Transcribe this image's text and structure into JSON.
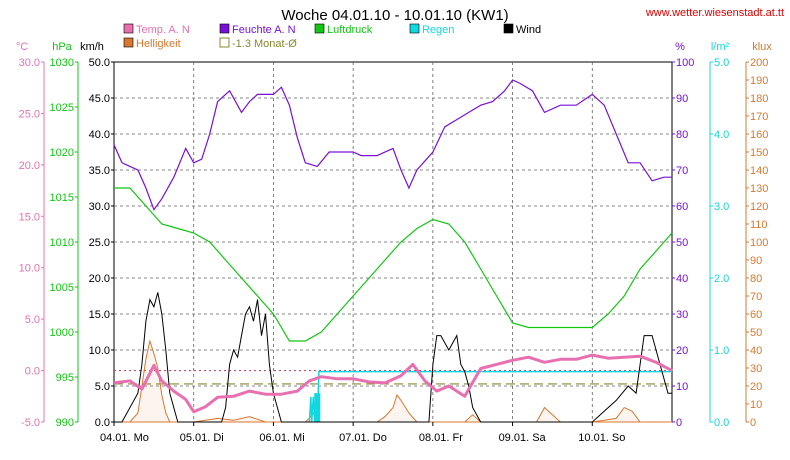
{
  "header": {
    "title": "Woche 04.01.10 - 10.01.10 (KW1)",
    "website": "www.wetter.wiesenstadt.at.tt"
  },
  "colors": {
    "temp": "#e870b0",
    "humidity": "#7a10d8",
    "pressure": "#10c810",
    "rain": "#10d8e0",
    "wind": "#000000",
    "brightness": "#d87830",
    "monthly_avg": "#888830",
    "website": "#e00000",
    "grid": "#606060"
  },
  "legend": [
    {
      "key": "temp",
      "label": "Temp. A. N",
      "color": "#e870b0",
      "style": "box"
    },
    {
      "key": "humidity",
      "label": "Feuchte A. N",
      "color": "#7a10d8",
      "style": "box"
    },
    {
      "key": "pressure",
      "label": "Luftdruck",
      "color": "#10c810",
      "style": "box"
    },
    {
      "key": "rain",
      "label": "Regen",
      "color": "#10d8e0",
      "style": "box"
    },
    {
      "key": "wind",
      "label": "Wind",
      "color": "#000000",
      "style": "box"
    },
    {
      "key": "brightness",
      "label": "Helligkeit",
      "color": "#d87830",
      "style": "box"
    },
    {
      "key": "monthly_avg",
      "label": "-1.3 Monat-Ø",
      "color": "#888830",
      "style": "outline"
    }
  ],
  "chart_data": {
    "type": "line",
    "grid": true,
    "x_range": [
      0,
      7
    ],
    "x_ticks": [
      {
        "x": 0,
        "label": "04.01. Mo"
      },
      {
        "x": 1,
        "label": "05.01. Di"
      },
      {
        "x": 2,
        "label": "06.01. Mi"
      },
      {
        "x": 3,
        "label": "07.01. Do"
      },
      {
        "x": 4,
        "label": "08.01. Fr"
      },
      {
        "x": 5,
        "label": "09.01. Sa"
      },
      {
        "x": 6,
        "label": "10.01. So"
      }
    ],
    "axes": {
      "temp": {
        "unit": "°C",
        "min": -5,
        "max": 30,
        "ticks": [
          "30.0",
          "25.0",
          "20.0",
          "15.0",
          "10.0",
          "5.0",
          "0.0",
          "-5.0"
        ]
      },
      "pressure": {
        "unit": "hPa",
        "min": 990,
        "max": 1030,
        "ticks": [
          "1030",
          "1025",
          "1020",
          "1015",
          "1010",
          "1005",
          "1000",
          "995",
          "990"
        ]
      },
      "wind": {
        "unit": "km/h",
        "min": 0,
        "max": 50,
        "ticks": [
          "50.0",
          "45.0",
          "40.0",
          "35.0",
          "30.0",
          "25.0",
          "20.0",
          "15.0",
          "10.0",
          "5.0",
          "0.0"
        ]
      },
      "humidity": {
        "unit": "%",
        "min": 0,
        "max": 100,
        "ticks": [
          "100",
          "90",
          "80",
          "70",
          "60",
          "50",
          "40",
          "30",
          "20",
          "10",
          "0"
        ]
      },
      "rain": {
        "unit": "l/m²",
        "min": 0,
        "max": 5,
        "ticks": [
          "5.0",
          "4.0",
          "3.0",
          "2.0",
          "1.0",
          "0.0"
        ]
      },
      "brightness": {
        "unit": "klux",
        "min": 0,
        "max": 200,
        "ticks": [
          "200",
          "190",
          "180",
          "170",
          "160",
          "150",
          "140",
          "130",
          "120",
          "110",
          "100",
          "90",
          "80",
          "70",
          "60",
          "50",
          "40",
          "30",
          "20",
          "10",
          "0"
        ]
      }
    },
    "monthly_avg_temp": -1.3,
    "series": [
      {
        "key": "humidity",
        "name": "Feuchte A. N",
        "axis": "humidity",
        "x": [
          0,
          0.1,
          0.2,
          0.3,
          0.4,
          0.5,
          0.6,
          0.75,
          0.9,
          1.0,
          1.1,
          1.2,
          1.3,
          1.45,
          1.6,
          1.7,
          1.8,
          2.0,
          2.1,
          2.2,
          2.3,
          2.4,
          2.55,
          2.7,
          2.85,
          3.0,
          3.1,
          3.3,
          3.5,
          3.6,
          3.7,
          3.8,
          4.0,
          4.15,
          4.3,
          4.45,
          4.6,
          4.75,
          4.9,
          5.0,
          5.1,
          5.25,
          5.4,
          5.6,
          5.8,
          6.0,
          6.15,
          6.3,
          6.45,
          6.6,
          6.75,
          6.9,
          7.0
        ],
        "y": [
          77,
          72,
          71,
          70,
          65,
          59,
          62,
          68,
          76,
          72,
          73,
          80,
          89,
          92,
          86,
          89,
          91,
          91,
          93,
          88,
          79,
          72,
          71,
          75,
          75,
          75,
          74,
          74,
          76,
          70,
          65,
          70,
          75,
          82,
          84,
          86,
          88,
          89,
          92,
          95,
          94,
          92,
          86,
          88,
          88,
          91,
          88,
          80,
          72,
          72,
          67,
          68,
          68
        ]
      },
      {
        "key": "pressure",
        "name": "Luftdruck",
        "axis": "pressure",
        "x": [
          0,
          0.2,
          0.4,
          0.6,
          0.8,
          1.0,
          1.2,
          1.4,
          1.6,
          1.8,
          2.0,
          2.2,
          2.4,
          2.6,
          2.8,
          3.0,
          3.2,
          3.4,
          3.6,
          3.8,
          4.0,
          4.2,
          4.4,
          4.6,
          4.8,
          5.0,
          5.2,
          5.4,
          5.6,
          5.8,
          6.0,
          6.2,
          6.4,
          6.6,
          6.8,
          7.0
        ],
        "y": [
          1016,
          1016,
          1014,
          1012,
          1011.5,
          1011,
          1010,
          1008,
          1006,
          1004,
          1002,
          999,
          999,
          1000,
          1002,
          1004,
          1006,
          1008,
          1010,
          1011.5,
          1012.5,
          1012,
          1010,
          1007,
          1004,
          1001,
          1000.5,
          1000.5,
          1000.5,
          1000.5,
          1000.5,
          1002,
          1004,
          1007,
          1009,
          1011
        ]
      },
      {
        "key": "temp",
        "name": "Temp. A. N",
        "axis": "temp",
        "x": [
          0,
          0.2,
          0.35,
          0.5,
          0.6,
          0.75,
          0.9,
          1.0,
          1.15,
          1.3,
          1.5,
          1.7,
          1.9,
          2.1,
          2.3,
          2.45,
          2.6,
          2.8,
          3.0,
          3.2,
          3.4,
          3.6,
          3.75,
          3.9,
          4.05,
          4.2,
          4.4,
          4.6,
          4.8,
          5.0,
          5.2,
          5.4,
          5.6,
          5.8,
          6.0,
          6.2,
          6.4,
          6.6,
          6.8,
          7.0
        ],
        "y": [
          -1.2,
          -1.0,
          -1.8,
          0.5,
          -1.0,
          -2.0,
          -2.8,
          -4.0,
          -3.5,
          -2.6,
          -2.5,
          -2.0,
          -2.3,
          -2.3,
          -2.0,
          -1.0,
          -0.6,
          -0.8,
          -0.8,
          -1.1,
          -1.2,
          -0.5,
          0.6,
          -1.0,
          -2.0,
          -1.5,
          -2.5,
          0.2,
          0.6,
          1.0,
          1.3,
          0.8,
          1.1,
          1.1,
          1.5,
          1.2,
          1.3,
          1.4,
          0.8,
          0.0
        ]
      },
      {
        "key": "wind",
        "name": "Wind",
        "axis": "wind",
        "x": [
          0,
          0.1,
          0.2,
          0.3,
          0.35,
          0.4,
          0.45,
          0.5,
          0.55,
          0.6,
          0.65,
          0.7,
          0.75,
          0.8,
          0.9,
          1.0,
          1.2,
          1.35,
          1.4,
          1.45,
          1.5,
          1.55,
          1.6,
          1.65,
          1.7,
          1.75,
          1.8,
          1.85,
          1.9,
          1.95,
          2.0,
          2.1,
          2.2,
          2.3,
          2.5,
          3.0,
          3.5,
          3.8,
          3.95,
          4.0,
          4.05,
          4.1,
          4.2,
          4.3,
          4.35,
          4.4,
          4.45,
          4.5,
          4.6,
          5.0,
          5.5,
          6.0,
          6.1,
          6.2,
          6.3,
          6.45,
          6.55,
          6.65,
          6.75,
          6.85,
          6.95,
          7.0
        ],
        "y": [
          0,
          0,
          2,
          4,
          8,
          14,
          17,
          16,
          18,
          15,
          10,
          4,
          2,
          0,
          0,
          0,
          0,
          0,
          2,
          8,
          10,
          9,
          12,
          15,
          16,
          14,
          17,
          12,
          15,
          8,
          4,
          0,
          0,
          0,
          0,
          0,
          0,
          0,
          0,
          8,
          12,
          12,
          10,
          12,
          8,
          7,
          5,
          2,
          0,
          0,
          0,
          0,
          1,
          2,
          3,
          5,
          4,
          12,
          12,
          8,
          4,
          4
        ]
      },
      {
        "key": "brightness",
        "name": "Helligkeit",
        "axis": "brightness",
        "x": [
          0,
          0.2,
          0.3,
          0.35,
          0.4,
          0.45,
          0.5,
          0.55,
          0.6,
          0.65,
          0.7,
          0.8,
          0.9,
          1.0,
          1.3,
          1.5,
          1.7,
          1.9,
          2.0,
          2.2,
          2.4,
          2.45,
          2.5,
          2.55,
          2.6,
          2.8,
          3.0,
          3.3,
          3.4,
          3.5,
          3.55,
          3.6,
          3.7,
          3.8,
          4.0,
          4.2,
          4.4,
          4.5,
          4.6,
          5.0,
          5.3,
          5.4,
          5.5,
          5.6,
          5.7,
          5.8,
          6.0,
          6.3,
          6.4,
          6.5,
          6.6,
          7.0
        ],
        "y": [
          0,
          0,
          5,
          20,
          35,
          45,
          38,
          30,
          15,
          5,
          0,
          0,
          0,
          0,
          2,
          1,
          3,
          0,
          0,
          0,
          0,
          2,
          5,
          0,
          0,
          0,
          0,
          0,
          3,
          8,
          15,
          12,
          5,
          0,
          0,
          0,
          0,
          4,
          0,
          0,
          0,
          8,
          4,
          0,
          0,
          0,
          0,
          2,
          8,
          6,
          0,
          0
        ]
      },
      {
        "key": "rain",
        "name": "Regen",
        "axis": "rain",
        "x": [
          2.45,
          2.47,
          2.48,
          2.5,
          2.52,
          2.53,
          2.55,
          2.57,
          2.6,
          2.62,
          2.65,
          2.7,
          3.0,
          3.5,
          4.0,
          4.5,
          5.0,
          5.5,
          6.0,
          6.5,
          7.0
        ],
        "y": [
          0,
          0.35,
          0.0,
          0.35,
          0.0,
          0.4,
          0.0,
          0.7,
          0.7,
          0.7,
          0.7,
          0.7,
          0.7,
          0.7,
          0.7,
          0.7,
          0.7,
          0.7,
          0.7,
          0.7,
          0.7
        ]
      }
    ]
  }
}
